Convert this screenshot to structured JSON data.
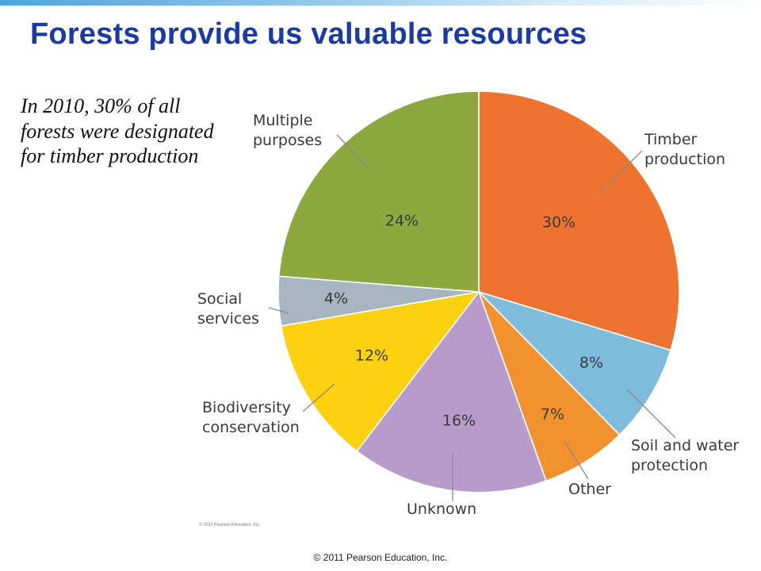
{
  "slide": {
    "title": "Forests provide us valuable resources",
    "caption": "In 2010, 30% of all forests were designated for timber production",
    "inner_credit": "© 2011 Pearson Education, Inc.",
    "footer": "© 2011 Pearson Education, Inc."
  },
  "chart_data": {
    "type": "pie",
    "title": "",
    "slices": [
      {
        "label_lines": [
          "Timber",
          "production"
        ],
        "value": 30,
        "display": "30%",
        "color": "#ee732e"
      },
      {
        "label_lines": [
          "Soil and water",
          "protection"
        ],
        "value": 8,
        "display": "8%",
        "color": "#7fbcdc"
      },
      {
        "label_lines": [
          "Other"
        ],
        "value": 7,
        "display": "7%",
        "color": "#f2922f"
      },
      {
        "label_lines": [
          "Unknown"
        ],
        "value": 16,
        "display": "16%",
        "color": "#b89bcb"
      },
      {
        "label_lines": [
          "Biodiversity",
          "conservation"
        ],
        "value": 12,
        "display": "12%",
        "color": "#fcd10f"
      },
      {
        "label_lines": [
          "Social",
          "services"
        ],
        "value": 4,
        "display": "4%",
        "color": "#a7b5c1"
      },
      {
        "label_lines": [
          "Multiple",
          "purposes"
        ],
        "value": 24,
        "display": "24%",
        "color": "#8ca83e"
      }
    ],
    "start_angle": "12 o'clock",
    "direction": "clockwise",
    "legend": "none (callout labels with leader lines)"
  }
}
